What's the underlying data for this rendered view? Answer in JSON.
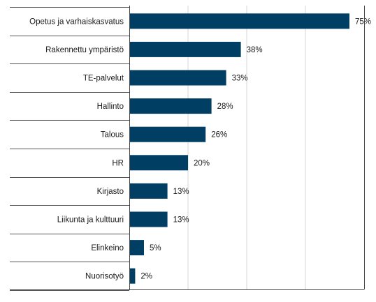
{
  "chart_data": {
    "type": "bar",
    "orientation": "horizontal",
    "categories": [
      "Opetus ja varhaiskasvatus",
      "Rakennettu ympäristö",
      "TE-palvelut",
      "Hallinto",
      "Talous",
      "HR",
      "Kirjasto",
      "Liikunta ja kulttuuri",
      "Elinkeino",
      "Nuorisotyö"
    ],
    "values": [
      75,
      38,
      33,
      28,
      26,
      20,
      13,
      13,
      5,
      2
    ],
    "value_labels": [
      "75%",
      "38%",
      "33%",
      "28%",
      "26%",
      "20%",
      "13%",
      "13%",
      "5%",
      "2%"
    ],
    "title": "",
    "xlabel": "",
    "ylabel": "",
    "xlim": [
      0,
      80
    ],
    "grid": true,
    "legend": "none",
    "colors": {
      "bar": "#003e63",
      "grid": "#d6d6d6",
      "axis": "#444444",
      "row_line": "#555555"
    }
  }
}
